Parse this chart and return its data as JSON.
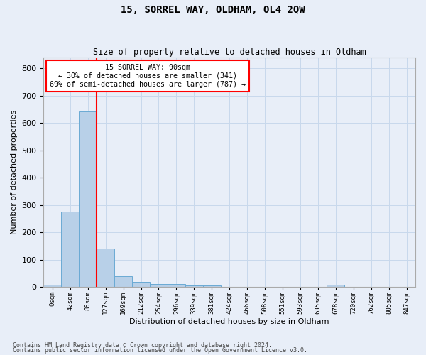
{
  "title": "15, SORREL WAY, OLDHAM, OL4 2QW",
  "subtitle": "Size of property relative to detached houses in Oldham",
  "xlabel": "Distribution of detached houses by size in Oldham",
  "ylabel": "Number of detached properties",
  "bin_labels": [
    "0sqm",
    "42sqm",
    "85sqm",
    "127sqm",
    "169sqm",
    "212sqm",
    "254sqm",
    "296sqm",
    "339sqm",
    "381sqm",
    "424sqm",
    "466sqm",
    "508sqm",
    "551sqm",
    "593sqm",
    "635sqm",
    "678sqm",
    "720sqm",
    "762sqm",
    "805sqm",
    "847sqm"
  ],
  "bar_heights": [
    8,
    275,
    643,
    140,
    40,
    18,
    12,
    10,
    6,
    5,
    0,
    0,
    0,
    0,
    0,
    0,
    8,
    0,
    0,
    0,
    0
  ],
  "bar_color": "#b8d0e8",
  "bar_edge_color": "#6aaad4",
  "red_line_x": 2.5,
  "annotation_line1": "15 SORREL WAY: 90sqm",
  "annotation_line2": "← 30% of detached houses are smaller (341)",
  "annotation_line3": "69% of semi-detached houses are larger (787) →",
  "ylim_max": 840,
  "yticks": [
    0,
    100,
    200,
    300,
    400,
    500,
    600,
    700,
    800
  ],
  "grid_color": "#c8d8ec",
  "footer1": "Contains HM Land Registry data © Crown copyright and database right 2024.",
  "footer2": "Contains public sector information licensed under the Open Government Licence v3.0.",
  "bg_color": "#e8eef8"
}
